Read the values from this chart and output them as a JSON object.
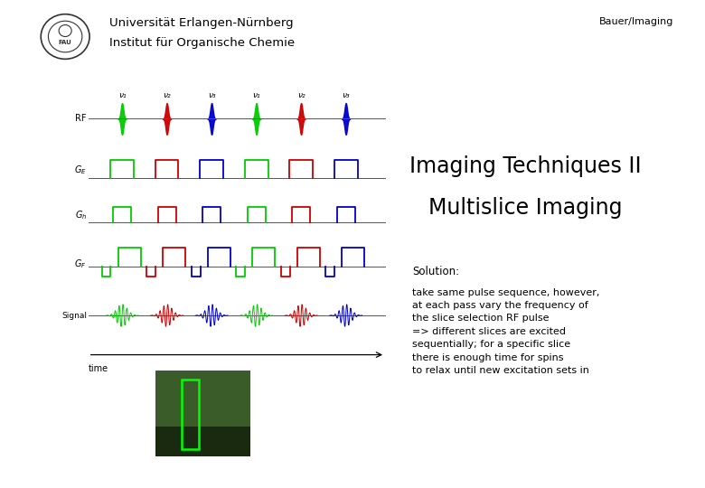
{
  "title_left_line1": "Universität Erlangen-Nürnberg",
  "title_left_line2": "Institut für Organische Chemie",
  "title_right": "Bauer/Imaging",
  "main_title_line1": "Imaging Techniques II",
  "main_title_line2": "Multislice Imaging",
  "solution_title": "Solution:",
  "solution_text": "take same pulse sequence, however,\nat each pass vary the frequency of\nthe slice selection RF pulse\n=> different slices are excited\nsequentially; for a specific slice\nthere is enough time for spins\nto relax until new excitation sets in",
  "bg_color": "#ffffff",
  "text_color": "#000000",
  "color_green": "#00cc00",
  "color_red": "#cc0000",
  "color_blue": "#0000cc",
  "nu_labels": [
    "ν₁",
    "ν₂",
    "ν₃",
    "ν₁",
    "ν₂",
    "ν₃"
  ]
}
